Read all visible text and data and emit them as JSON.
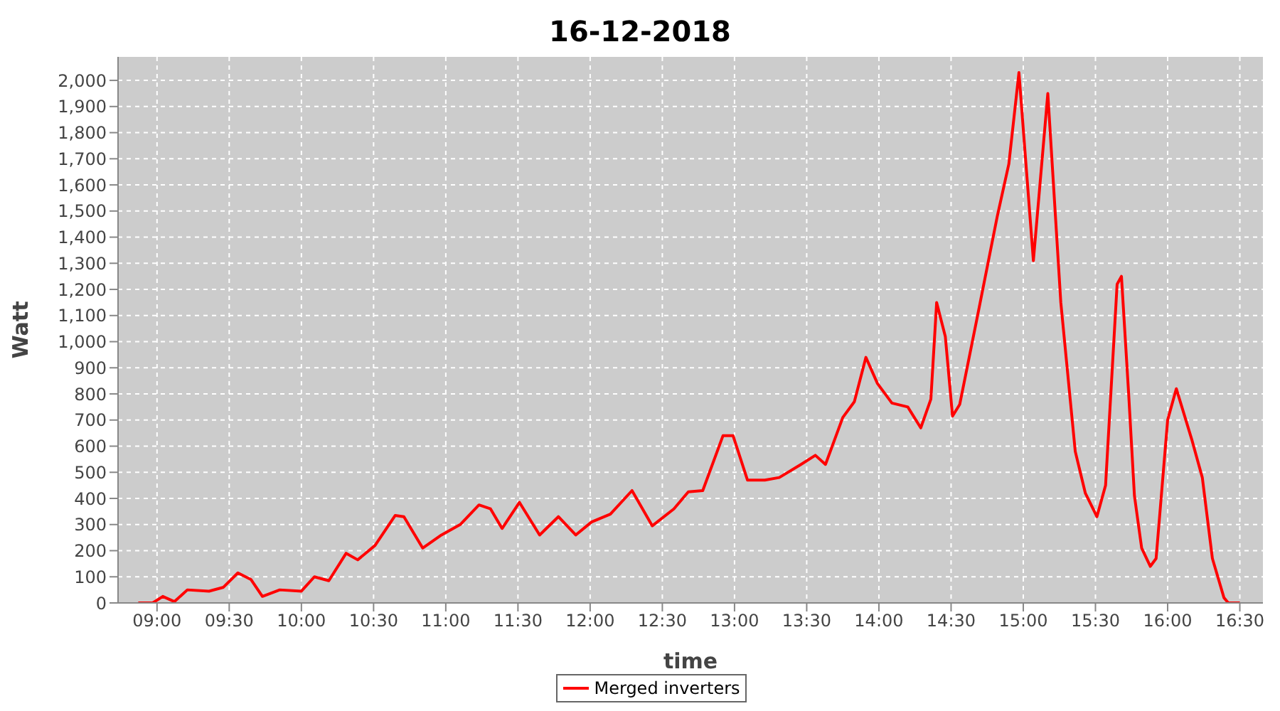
{
  "chart_data": {
    "type": "line",
    "title": "16-12-2018",
    "xlabel": "time",
    "ylabel": "Watt",
    "xlim": [
      8.73,
      16.66
    ],
    "ylim": [
      0,
      2090
    ],
    "xticks": [
      {
        "value": 9,
        "label": "09:00"
      },
      {
        "value": 9.5,
        "label": "09:30"
      },
      {
        "value": 10,
        "label": "10:00"
      },
      {
        "value": 10.5,
        "label": "10:30"
      },
      {
        "value": 11,
        "label": "11:00"
      },
      {
        "value": 11.5,
        "label": "11:30"
      },
      {
        "value": 12,
        "label": "12:00"
      },
      {
        "value": 12.5,
        "label": "12:30"
      },
      {
        "value": 13,
        "label": "13:00"
      },
      {
        "value": 13.5,
        "label": "13:30"
      },
      {
        "value": 14,
        "label": "14:00"
      },
      {
        "value": 14.5,
        "label": "14:30"
      },
      {
        "value": 15,
        "label": "15:00"
      },
      {
        "value": 15.5,
        "label": "15:30"
      },
      {
        "value": 16,
        "label": "16:00"
      },
      {
        "value": 16.5,
        "label": "16:30"
      }
    ],
    "yticks": [
      0,
      100,
      200,
      300,
      400,
      500,
      600,
      700,
      800,
      900,
      {
        "value": 1000,
        "label": "1,000"
      },
      {
        "value": 1100,
        "label": "1,100"
      },
      {
        "value": 1200,
        "label": "1,200"
      },
      {
        "value": 1300,
        "label": "1,300"
      },
      {
        "value": 1400,
        "label": "1,400"
      },
      {
        "value": 1500,
        "label": "1,500"
      },
      {
        "value": 1600,
        "label": "1,600"
      },
      {
        "value": 1700,
        "label": "1,700"
      },
      {
        "value": 1800,
        "label": "1,800"
      },
      {
        "value": 1900,
        "label": "1,900"
      },
      {
        "value": 2000,
        "label": "2,000"
      }
    ],
    "grid": true,
    "legend": "bottom",
    "marker": "none",
    "line_style": "solid",
    "x": [
      8.87,
      8.97,
      9.04,
      9.12,
      9.21,
      9.36,
      9.46,
      9.56,
      9.65,
      9.73,
      9.85,
      10.0,
      10.09,
      10.19,
      10.31,
      10.39,
      10.51,
      10.65,
      10.71,
      10.84,
      10.97,
      11.1,
      11.23,
      11.31,
      11.39,
      11.51,
      11.65,
      11.78,
      11.9,
      12.01,
      12.14,
      12.29,
      12.43,
      12.58,
      12.68,
      12.78,
      12.92,
      12.99,
      13.09,
      13.21,
      13.31,
      13.46,
      13.56,
      13.63,
      13.75,
      13.83,
      13.91,
      13.99,
      14.09,
      14.2,
      14.29,
      14.36,
      14.4,
      14.46,
      14.51,
      14.56,
      14.68,
      14.82,
      14.9,
      14.97,
      15.07,
      15.17,
      15.26,
      15.36,
      15.43,
      15.51,
      15.57,
      15.65,
      15.68,
      15.73,
      15.77,
      15.82,
      15.88,
      15.92,
      16.0,
      16.06,
      16.17,
      16.24,
      16.31,
      16.39,
      16.42,
      16.5
    ],
    "series": [
      {
        "name": "Merged inverters",
        "color": "#ff0000",
        "values": [
          0,
          0,
          25,
          5,
          50,
          45,
          60,
          115,
          90,
          25,
          50,
          45,
          100,
          85,
          190,
          165,
          220,
          335,
          330,
          210,
          260,
          300,
          375,
          360,
          285,
          385,
          260,
          330,
          260,
          310,
          340,
          430,
          295,
          360,
          425,
          430,
          640,
          640,
          470,
          470,
          480,
          530,
          565,
          530,
          710,
          770,
          940,
          840,
          765,
          750,
          670,
          780,
          1150,
          1020,
          715,
          760,
          1090,
          1480,
          1680,
          2030,
          1310,
          1950,
          1150,
          580,
          420,
          330,
          450,
          1220,
          1250,
          800,
          410,
          210,
          140,
          170,
          700,
          820,
          620,
          480,
          170,
          20,
          0,
          0
        ]
      }
    ]
  }
}
